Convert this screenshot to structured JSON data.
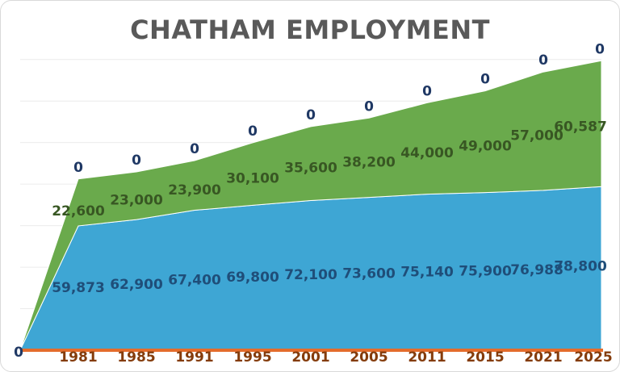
{
  "chart_data": {
    "type": "area",
    "title": "CHATHAM EMPLOYMENT",
    "xlabel": "",
    "ylabel": "",
    "stacked": true,
    "categories": [
      "",
      "1981",
      "1985",
      "1991",
      "1995",
      "2001",
      "2005",
      "2011",
      "2015",
      "2021",
      "2025"
    ],
    "series": [
      {
        "color": "#3ea6d4",
        "label_color": "#1f4e79",
        "values": [
          0,
          59873,
          62900,
          67400,
          69800,
          72100,
          73600,
          75140,
          75900,
          76988,
          78800
        ],
        "labels": [
          "",
          "59,873",
          "62,900",
          "67,400",
          "69,800",
          "72,100",
          "73,600",
          "75,140",
          "75,900",
          "76,988",
          "78,800"
        ]
      },
      {
        "color": "#6aaa4c",
        "label_color": "#385723",
        "values": [
          0,
          22600,
          23000,
          23900,
          30100,
          35600,
          38200,
          44000,
          49000,
          57000,
          60587
        ],
        "labels": [
          "",
          "22,600",
          "23,000",
          "23,900",
          "30,100",
          "35,600",
          "38,200",
          "44,000",
          "49,000",
          "57,000",
          "60,587"
        ]
      },
      {
        "color": "#e46c2c",
        "label_color": "#1f3864",
        "values": [
          0,
          0,
          0,
          0,
          0,
          0,
          0,
          0,
          0,
          0,
          0
        ],
        "labels": [
          "0",
          "0",
          "0",
          "0",
          "0",
          "0",
          "0",
          "0",
          "0",
          "0",
          "0"
        ]
      }
    ],
    "ylim": [
      0,
      150000
    ],
    "grid": true,
    "legend": "none",
    "colors": {
      "axis_label": "#843c0c",
      "grid": "#ececec",
      "baseline": "#e46c2c"
    }
  }
}
